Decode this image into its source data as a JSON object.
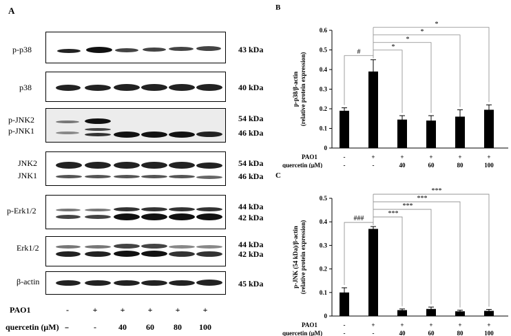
{
  "panel_a": {
    "letter": "A",
    "lanes": {
      "pao1": [
        "-",
        "+",
        "+",
        "+",
        "+",
        "+"
      ],
      "quercetin": [
        "-",
        "-",
        "40",
        "60",
        "80",
        "100"
      ]
    },
    "pao1_label": "PAO1",
    "quercetin_label": "quercetin (μM)",
    "quercetin_dash": "-",
    "blots": [
      {
        "name": "p-p38",
        "labels": [
          "p-p38"
        ],
        "kda": [
          "43 kDa"
        ]
      },
      {
        "name": "p38",
        "labels": [
          "p38"
        ],
        "kda": [
          "40 kDa"
        ]
      },
      {
        "name": "p-jnk",
        "labels": [
          "p-JNK2",
          "p-JNK1"
        ],
        "kda": [
          "54 kDa",
          "46 kDa"
        ]
      },
      {
        "name": "jnk",
        "labels": [
          "JNK2",
          "JNK1"
        ],
        "kda": [
          "54 kDa",
          "46 kDa"
        ]
      },
      {
        "name": "p-erk",
        "labels": [
          "p-Erk1/2"
        ],
        "kda": [
          "44 kDa",
          "42 kDa"
        ]
      },
      {
        "name": "erk",
        "labels": [
          "Erk1/2"
        ],
        "kda": [
          "44 kDa",
          "42 kDa"
        ]
      },
      {
        "name": "actin",
        "labels": [
          "β-actin"
        ],
        "kda": [
          "45 kDa"
        ]
      }
    ]
  },
  "chart_data": [
    {
      "panel": "B",
      "type": "bar",
      "ylabel_line1": "p-p38/β-actin",
      "ylabel_line2": "(relative protein expression)",
      "ylim": [
        0,
        0.6
      ],
      "yticks": [
        "0",
        "0.1",
        "0.2",
        "0.3",
        "0.4",
        "0.5",
        "0.6"
      ],
      "values": [
        0.19,
        0.39,
        0.145,
        0.14,
        0.16,
        0.195
      ],
      "errors": [
        0.015,
        0.06,
        0.02,
        0.025,
        0.035,
        0.025
      ],
      "pao1_label": "PAO1",
      "quercetin_label": "quercetin (μM)",
      "pao1": [
        "-",
        "+",
        "+",
        "+",
        "+",
        "+"
      ],
      "quercetin": [
        "-",
        "-",
        "40",
        "60",
        "80",
        "100"
      ],
      "sig_ref": "#",
      "sig": [
        "*",
        "*",
        "*",
        "*"
      ]
    },
    {
      "panel": "C",
      "type": "bar",
      "ylabel_line1": "p-JNK (54 kDa)/β-actin",
      "ylabel_line2": "(relative protein expression)",
      "ylim": [
        0,
        0.5
      ],
      "yticks": [
        "0",
        "0.1",
        "0.2",
        "0.3",
        "0.4",
        "0.5"
      ],
      "values": [
        0.1,
        0.37,
        0.025,
        0.03,
        0.02,
        0.022
      ],
      "errors": [
        0.02,
        0.01,
        0.005,
        0.008,
        0.005,
        0.006
      ],
      "pao1_label": "PAO1",
      "quercetin_label": "quercetin (μM)",
      "pao1": [
        "-",
        "+",
        "+",
        "+",
        "+",
        "+"
      ],
      "quercetin": [
        "-",
        "-",
        "40",
        "60",
        "80",
        "100"
      ],
      "sig_ref": "###",
      "sig": [
        "***",
        "***",
        "***",
        "***"
      ]
    }
  ]
}
